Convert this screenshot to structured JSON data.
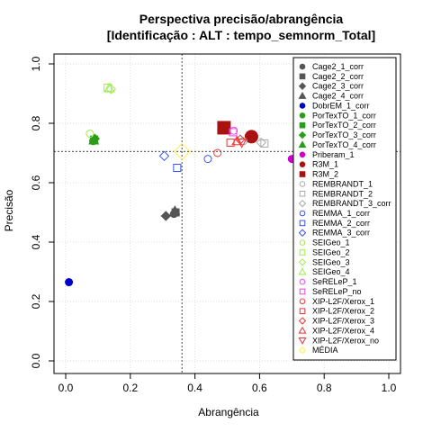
{
  "chart_data": {
    "type": "scatter",
    "title": "Perspectiva precisão/abrangência",
    "subtitle": "[Identificação : ALT : tempo_semnorm_Total]",
    "xlabel": "Abrangência",
    "ylabel": "Precisão",
    "xlim": [
      0,
      1
    ],
    "ylim": [
      0,
      1
    ],
    "xticks": [
      "0.0",
      "0.2",
      "0.4",
      "0.6",
      "0.8",
      "1.0"
    ],
    "yticks": [
      "0.0",
      "0.2",
      "0.4",
      "0.6",
      "0.8",
      "1.0"
    ],
    "grid": true,
    "reference_lines": {
      "x": 0.36,
      "y": 0.705
    },
    "legend_position": "right",
    "series": [
      {
        "name": "Cage2_1_corr",
        "shape": "circle",
        "color": "#555555",
        "filled": true,
        "points": [
          [
            0.335,
            0.495
          ]
        ]
      },
      {
        "name": "Cage2_2_corr",
        "shape": "square",
        "color": "#555555",
        "filled": true,
        "points": [
          [
            0.34,
            0.5
          ]
        ]
      },
      {
        "name": "Cage2_3_corr",
        "shape": "diamond",
        "color": "#555555",
        "filled": true,
        "points": [
          [
            0.31,
            0.488
          ]
        ]
      },
      {
        "name": "Cage2_4_corr",
        "shape": "triangle",
        "color": "#555555",
        "filled": true,
        "points": [
          [
            0.338,
            0.505
          ]
        ]
      },
      {
        "name": "DobrEM_1_corr",
        "shape": "circle",
        "color": "#0000cc",
        "filled": true,
        "points": [
          [
            0.01,
            0.265
          ]
        ]
      },
      {
        "name": "PorTexTO_1_corr",
        "shape": "circle",
        "color": "#2a9e1a",
        "filled": true,
        "points": [
          [
            0.085,
            0.74
          ]
        ]
      },
      {
        "name": "PorTexTO_2_corr",
        "shape": "square",
        "color": "#2a9e1a",
        "filled": true,
        "points": [
          [
            0.088,
            0.745
          ]
        ]
      },
      {
        "name": "PorTexTO_3_corr",
        "shape": "diamond",
        "color": "#2a9e1a",
        "filled": true,
        "points": [
          [
            0.09,
            0.748
          ]
        ]
      },
      {
        "name": "PorTexTO_4_corr",
        "shape": "triangle",
        "color": "#2a9e1a",
        "filled": true,
        "points": [
          [
            0.087,
            0.742
          ]
        ]
      },
      {
        "name": "Priberam_1",
        "shape": "circle",
        "color": "#cc00cc",
        "filled": true,
        "points": [
          [
            0.7,
            0.68
          ]
        ]
      },
      {
        "name": "R3M_1",
        "shape": "circle",
        "color": "#aa1111",
        "filled": true,
        "points": [
          [
            0.575,
            0.755
          ]
        ]
      },
      {
        "name": "R3M_2",
        "shape": "square",
        "color": "#aa1111",
        "filled": true,
        "points": [
          [
            0.49,
            0.785
          ]
        ]
      },
      {
        "name": "REMBRANDT_1",
        "shape": "circle",
        "color": "#aaaaaa",
        "filled": false,
        "points": [
          [
            0.55,
            0.74
          ]
        ]
      },
      {
        "name": "REMBRANDT_2",
        "shape": "square",
        "color": "#aaaaaa",
        "filled": false,
        "points": [
          [
            0.615,
            0.732
          ]
        ]
      },
      {
        "name": "REMBRANDT_3_corr",
        "shape": "diamond",
        "color": "#aaaaaa",
        "filled": false,
        "points": [
          [
            0.605,
            0.735
          ]
        ]
      },
      {
        "name": "REMMA_1_corr",
        "shape": "circle",
        "color": "#3355ee",
        "filled": false,
        "points": [
          [
            0.44,
            0.68
          ]
        ]
      },
      {
        "name": "REMMA_2_corr",
        "shape": "square",
        "color": "#3355ee",
        "filled": false,
        "points": [
          [
            0.345,
            0.65
          ]
        ]
      },
      {
        "name": "REMMA_3_corr",
        "shape": "diamond",
        "color": "#3355ee",
        "filled": false,
        "points": [
          [
            0.305,
            0.69
          ]
        ]
      },
      {
        "name": "SEIGeo_1",
        "shape": "circle",
        "color": "#99ee44",
        "filled": false,
        "points": [
          [
            0.075,
            0.765
          ]
        ]
      },
      {
        "name": "SEIGeo_2",
        "shape": "square",
        "color": "#99ee44",
        "filled": false,
        "points": [
          [
            0.13,
            0.92
          ]
        ]
      },
      {
        "name": "SEIGeo_3",
        "shape": "diamond",
        "color": "#99ee44",
        "filled": false,
        "points": [
          [
            0.14,
            0.915
          ]
        ]
      },
      {
        "name": "SEIGeo_4",
        "shape": "triangle",
        "color": "#99ee44",
        "filled": false,
        "points": [
          [
            0.135,
            0.918
          ]
        ]
      },
      {
        "name": "SeRELeP_1",
        "shape": "circle",
        "color": "#ee44ee",
        "filled": false,
        "points": [
          [
            0.52,
            0.775
          ]
        ]
      },
      {
        "name": "SeRELeP_no",
        "shape": "square",
        "color": "#ee44ee",
        "filled": false,
        "points": [
          [
            0.518,
            0.77
          ]
        ]
      },
      {
        "name": "XIP-L2F/Xerox_1",
        "shape": "circle",
        "color": "#ee3333",
        "filled": false,
        "points": [
          [
            0.47,
            0.7
          ]
        ]
      },
      {
        "name": "XIP-L2F/Xerox_2",
        "shape": "square",
        "color": "#ee3333",
        "filled": false,
        "points": [
          [
            0.51,
            0.735
          ]
        ]
      },
      {
        "name": "XIP-L2F/Xerox_3",
        "shape": "diamond",
        "color": "#ee3333",
        "filled": false,
        "points": [
          [
            0.54,
            0.745
          ]
        ]
      },
      {
        "name": "XIP-L2F/Xerox_4",
        "shape": "triangle",
        "color": "#ee3333",
        "filled": false,
        "points": [
          [
            0.53,
            0.74
          ]
        ]
      },
      {
        "name": "XIP-L2F/Xerox_no",
        "shape": "triangle-down",
        "color": "#ee3333",
        "filled": false,
        "points": [
          [
            0.545,
            0.735
          ]
        ]
      },
      {
        "name": "MÉDIA",
        "shape": "diamond",
        "color": "#ffee55",
        "filled": false,
        "big": true,
        "points": [
          [
            0.36,
            0.705
          ]
        ]
      }
    ]
  }
}
